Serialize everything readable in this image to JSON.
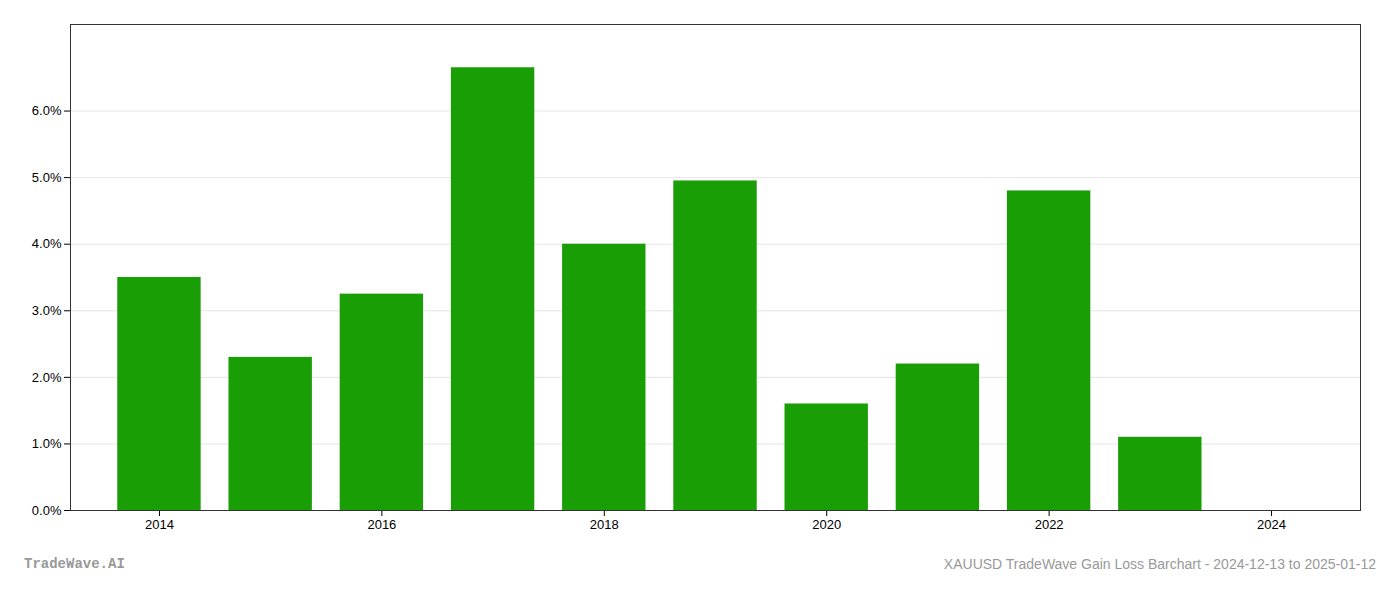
{
  "chart_data": {
    "type": "bar",
    "x": [
      2014,
      2015,
      2016,
      2017,
      2018,
      2019,
      2020,
      2021,
      2022,
      2023
    ],
    "values": [
      0.035,
      0.023,
      0.0325,
      0.0665,
      0.04,
      0.0495,
      0.016,
      0.022,
      0.048,
      0.011
    ],
    "color": "#1a9e06",
    "xlim": [
      2013.2,
      2024.8
    ],
    "xticks": [
      2014,
      2016,
      2018,
      2020,
      2022,
      2024
    ],
    "ylim": [
      0,
      0.073
    ],
    "yticks": [
      {
        "value": 0.0,
        "label": "0.0%"
      },
      {
        "value": 0.01,
        "label": "1.0%"
      },
      {
        "value": 0.02,
        "label": "2.0%"
      },
      {
        "value": 0.03,
        "label": "3.0%"
      },
      {
        "value": 0.04,
        "label": "4.0%"
      },
      {
        "value": 0.05,
        "label": "5.0%"
      },
      {
        "value": 0.06,
        "label": "6.0%"
      }
    ],
    "grid": true,
    "annotations": [
      "TradeWave.AI",
      "XAUUSD TradeWave Gain Loss Barchart - 2024-12-13 to 2025-01-12"
    ]
  }
}
